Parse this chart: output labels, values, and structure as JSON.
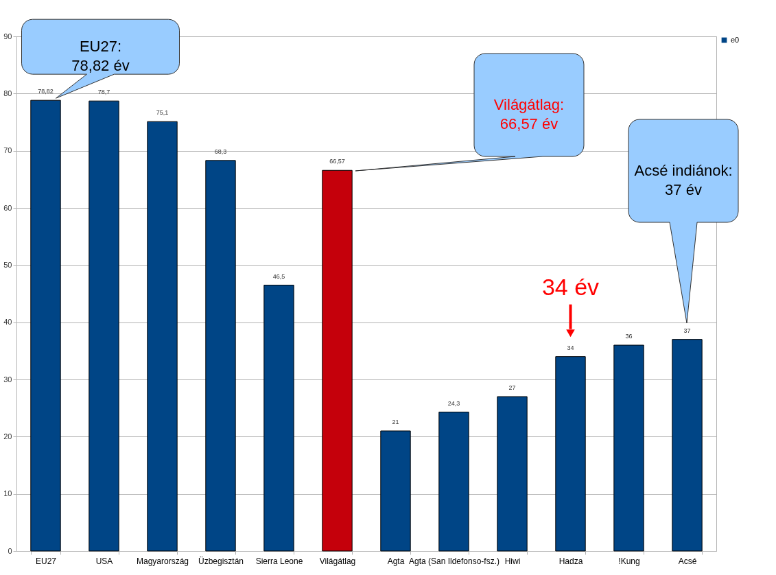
{
  "chart_data": {
    "type": "bar",
    "categories": [
      "EU27",
      "USA",
      "Magyarország",
      "Üzbegisztán",
      "Sierra Leone",
      "Világátlag",
      "Agta",
      "Agta (San Ildefonso-fsz.)",
      "Hiwi",
      "Hadza",
      "!Kung",
      "Acsé"
    ],
    "series": [
      {
        "name": "e0",
        "color": "#004586",
        "colors": [
          "#004586",
          "#004586",
          "#004586",
          "#004586",
          "#004586",
          "#c5000b",
          "#004586",
          "#004586",
          "#004586",
          "#004586",
          "#004586",
          "#004586"
        ],
        "values": [
          78.82,
          78.7,
          75.1,
          68.3,
          46.5,
          66.57,
          21,
          24.3,
          27,
          34,
          36,
          37
        ],
        "value_labels": [
          "78,82",
          "78,7",
          "75,1",
          "68,3",
          "46,5",
          "66,57",
          "21",
          "24,3",
          "27",
          "34",
          "36",
          "37"
        ]
      }
    ],
    "ylim": [
      0,
      90
    ],
    "yticks": [
      0,
      10,
      20,
      30,
      40,
      50,
      60,
      70,
      80,
      90
    ],
    "grid": "y",
    "legend": "right",
    "annotations": [
      {
        "text": "EU27: 78,82 év",
        "x": "EU27",
        "y": 78.82
      },
      "Világátlag: 66,57 év",
      "Acsé indiánok: 37 év",
      {
        "text": "34 év",
        "x": "Hadza",
        "y": 34
      }
    ]
  }
}
